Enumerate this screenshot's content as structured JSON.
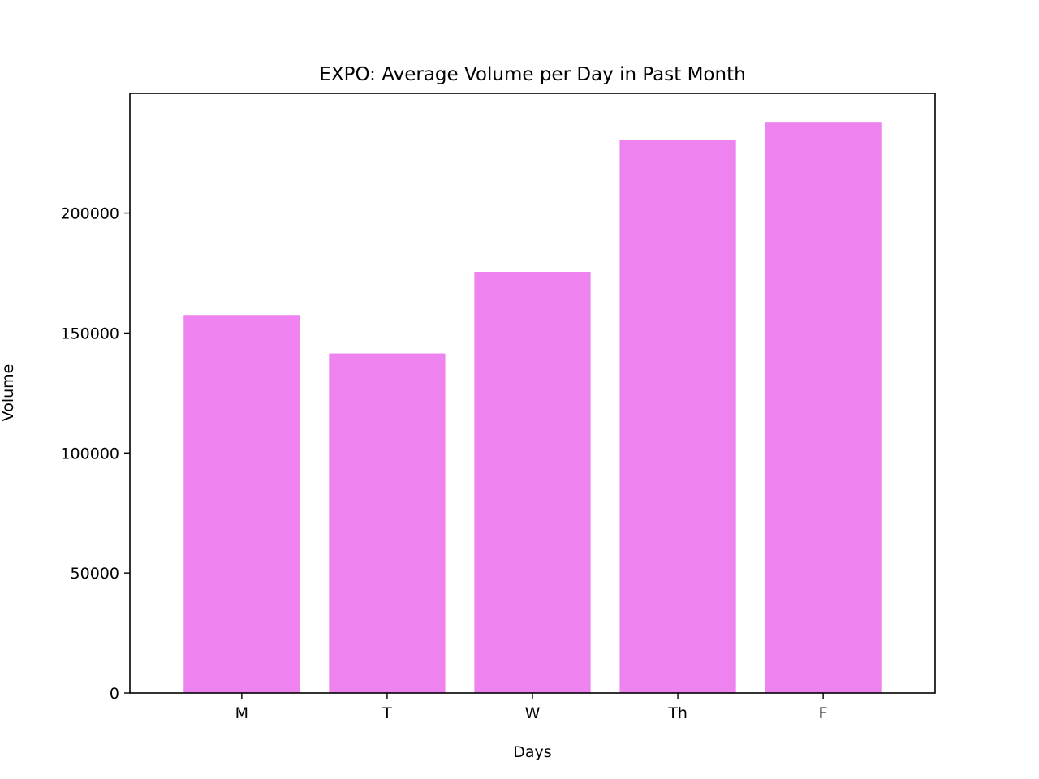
{
  "chart_data": {
    "type": "bar",
    "title": "EXPO: Average Volume per Day in Past Month",
    "xlabel": "Days",
    "ylabel": "Volume",
    "categories": [
      "M",
      "T",
      "W",
      "Th",
      "F"
    ],
    "values": [
      157500,
      141500,
      175500,
      230500,
      238000
    ],
    "ylim": [
      0,
      249900
    ],
    "yticks": [
      0,
      50000,
      100000,
      150000,
      200000
    ],
    "ytick_labels": [
      "0",
      "50000",
      "100000",
      "150000",
      "200000"
    ],
    "bar_color": "#ee82ee",
    "grid": false,
    "legend": "none"
  }
}
